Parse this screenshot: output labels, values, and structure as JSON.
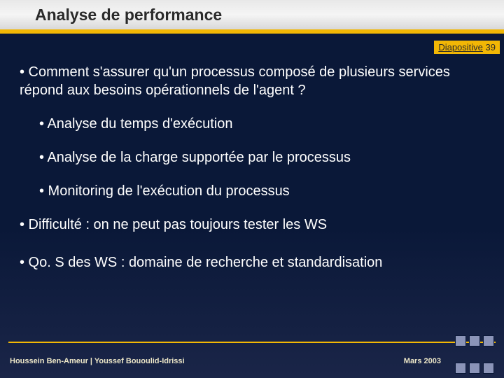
{
  "header": {
    "title": "Analyse de performance"
  },
  "slideNumber": {
    "label": "Diapositive",
    "num": "39"
  },
  "content": {
    "b1": "• Comment s'assurer qu'un processus composé de plusieurs services répond aux besoins opérationnels de l'agent ?",
    "s1": "• Analyse du temps d'exécution",
    "s2": "• Analyse de la charge supportée par le processus",
    "s3": "• Monitoring de l'exécution du processus",
    "b2": "• Difficulté : on ne peut pas toujours tester les WS",
    "b3": "• Qo. S des WS : domaine de recherche et standardisation"
  },
  "footer": {
    "left": "Houssein Ben-Ameur | Youssef Bououlid-Idrissi",
    "right": "Mars 2003"
  },
  "style": {
    "accent": "#f2b705",
    "bg_top": "#0a1838",
    "text": "#ffffff",
    "header_text": "#2a2a2a"
  }
}
